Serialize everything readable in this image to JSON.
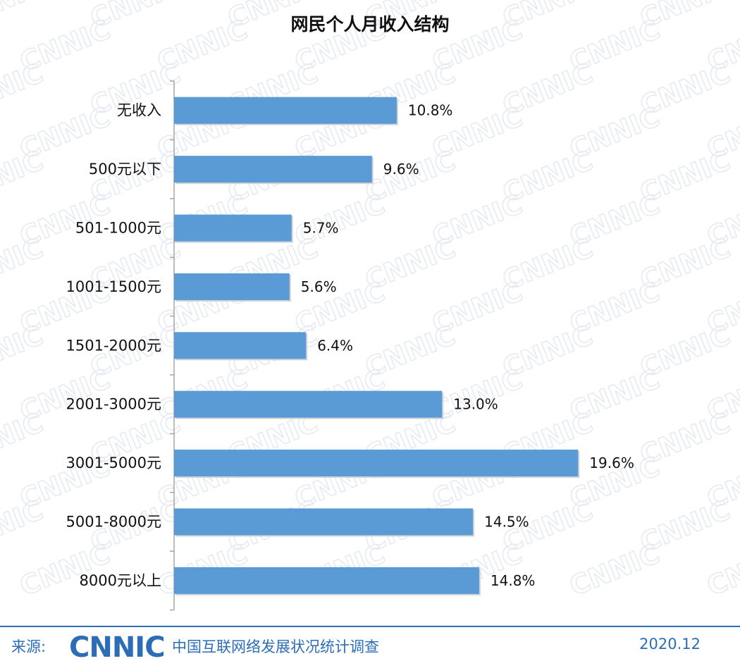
{
  "chart_data": {
    "type": "bar",
    "orientation": "horizontal",
    "title": "网民个人月收入结构",
    "categories": [
      "无收入",
      "500元以下",
      "501-1000元",
      "1001-1500元",
      "1501-2000元",
      "2001-3000元",
      "3001-5000元",
      "5001-8000元",
      "8000元以上"
    ],
    "values": [
      10.8,
      9.6,
      5.7,
      5.6,
      6.4,
      13.0,
      19.6,
      14.5,
      14.8
    ],
    "value_labels": [
      "10.8%",
      "9.6%",
      "5.7%",
      "5.6%",
      "6.4%",
      "13.0%",
      "19.6%",
      "14.5%",
      "14.8%"
    ],
    "xlim": [
      0,
      20
    ],
    "bar_color": "#5b9bd5",
    "grid": false,
    "legend": "none"
  },
  "watermark": "CNNIC",
  "footer": {
    "source_label": "来源:",
    "logo_text": "CNNIC",
    "source_name": "中国互联网络发展状况统计调查",
    "date": "2020.12"
  },
  "colors": {
    "accent": "#2c6db5",
    "bar": "#5b9bd5"
  }
}
